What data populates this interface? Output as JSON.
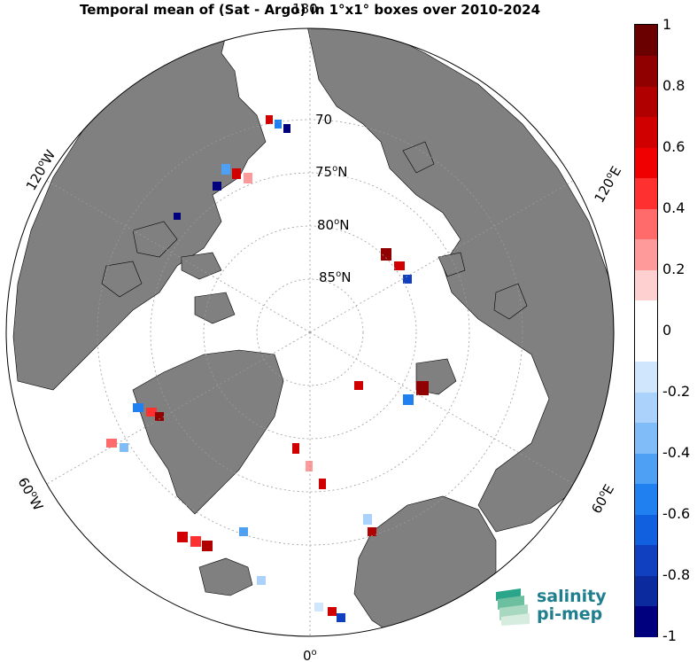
{
  "title": "Temporal mean of (Sat - Argo) in 1°x1° boxes over 2010-2024",
  "map": {
    "projection": "north-polar-stereographic",
    "lat_labels": [
      {
        "text": "70",
        "sup": ""
      },
      {
        "text": "75",
        "sup": "o",
        "suffix": "N"
      },
      {
        "text": "80",
        "sup": "o",
        "suffix": "N"
      },
      {
        "text": "85",
        "sup": "o",
        "suffix": "N"
      }
    ],
    "lon_labels": {
      "top": "180",
      "bottom": "0",
      "upper_left": "120",
      "upper_left_suffix": "W",
      "upper_right": "120",
      "upper_right_suffix": "E",
      "lower_left": "60",
      "lower_left_suffix": "W",
      "lower_right": "60",
      "lower_right_suffix": "E"
    },
    "land_color": "#808080",
    "ice_color": "#ffffff",
    "ocean_background": "#ffffff"
  },
  "colorbar": {
    "min": -1,
    "max": 1,
    "ticks": [
      "1",
      "0.8",
      "0.6",
      "0.4",
      "0.2",
      "0",
      "-0.2",
      "-0.4",
      "-0.6",
      "-0.8",
      "-1"
    ],
    "colors": [
      "#00007f",
      "#0a2a9e",
      "#1040c0",
      "#1060e0",
      "#2080f0",
      "#4ea0f4",
      "#80bcf7",
      "#aad2fa",
      "#d0e6fc",
      "#ffffff",
      "#ffffff",
      "#ffd0d0",
      "#ff9a9a",
      "#ff6a6a",
      "#ff3030",
      "#f00000",
      "#d00000",
      "#b00000",
      "#900000",
      "#6a0000"
    ]
  },
  "logo": {
    "line1": "salinity",
    "line2": "pi-mep",
    "icon": "wave-layers-icon"
  }
}
